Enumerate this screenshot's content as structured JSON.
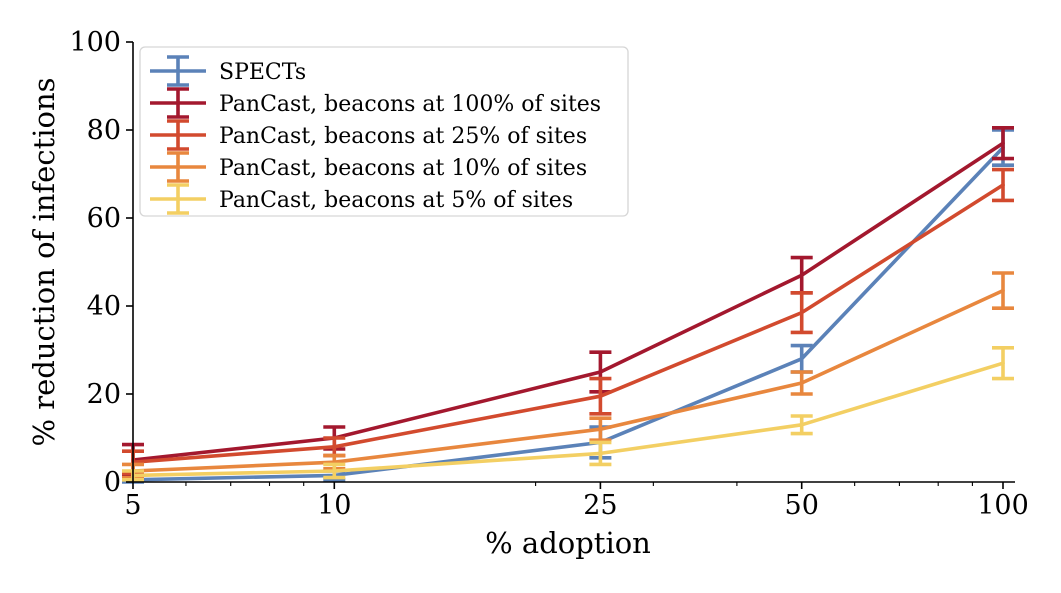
{
  "chart_data": {
    "type": "line",
    "xlabel": "% adoption",
    "ylabel": "% reduction of infections",
    "x": [
      5,
      10,
      25,
      50,
      100
    ],
    "xscale": "log",
    "xlim": [
      5,
      100
    ],
    "ylim": [
      0,
      100
    ],
    "xticks": [
      "5",
      "10",
      "25",
      "50",
      "100"
    ],
    "yticks": [
      "0",
      "20",
      "40",
      "60",
      "80",
      "100"
    ],
    "grid": false,
    "legend_position": "top-left",
    "error_bars": true,
    "series": [
      {
        "name": "SPECTs",
        "color": "#5b82b8",
        "values": [
          0.5,
          1.5,
          9,
          28,
          76
        ],
        "err": [
          0.5,
          1,
          3.5,
          3,
          4
        ]
      },
      {
        "name": "PanCast, beacons at 100% of sites",
        "color": "#a3182e",
        "values": [
          5,
          10,
          25,
          47,
          77
        ],
        "err": [
          3.5,
          2.5,
          4.5,
          4,
          3.5
        ]
      },
      {
        "name": "PanCast, beacons at 25% of sites",
        "color": "#d24a2e",
        "values": [
          4.5,
          8,
          19.5,
          38.5,
          67.5
        ],
        "err": [
          2.5,
          2,
          4,
          4.5,
          3.5
        ]
      },
      {
        "name": "PanCast, beacons at 10% of sites",
        "color": "#e8873e",
        "values": [
          2.5,
          4.5,
          12,
          22.5,
          43.5
        ],
        "err": [
          1.5,
          1.5,
          2.5,
          2.5,
          4
        ]
      },
      {
        "name": "PanCast, beacons at 5% of sites",
        "color": "#f3cf63",
        "values": [
          1.5,
          2.5,
          6.5,
          13,
          27
        ],
        "err": [
          1,
          1.5,
          2.5,
          2,
          3.5
        ]
      }
    ]
  }
}
